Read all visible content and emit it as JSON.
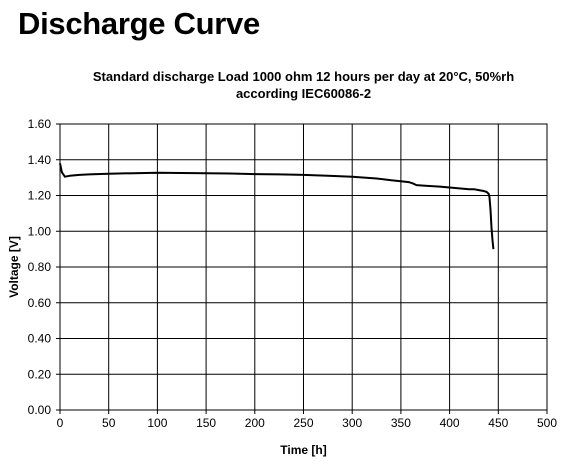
{
  "page": {
    "title": "Discharge Curve"
  },
  "chart_data": {
    "type": "line",
    "title_lines": [
      "Standard discharge Load 1000 ohm 12 hours per day at 20°C, 50%rh",
      "according IEC60086-2"
    ],
    "xlabel": "Time [h]",
    "ylabel": "Voltage [V]",
    "xlim": [
      0,
      500
    ],
    "ylim": [
      0,
      1.6
    ],
    "xticks": [
      0,
      50,
      100,
      150,
      200,
      250,
      300,
      350,
      400,
      450,
      500
    ],
    "yticks": [
      0.0,
      0.2,
      0.4,
      0.6,
      0.8,
      1.0,
      1.2,
      1.4,
      1.6
    ],
    "ytick_labels": [
      "0.00",
      "0.20",
      "0.40",
      "0.60",
      "0.80",
      "1.00",
      "1.20",
      "1.40",
      "1.60"
    ],
    "grid": true,
    "series": [
      {
        "x": [
          0,
          2,
          5,
          10,
          20,
          30,
          50,
          75,
          100,
          125,
          150,
          175,
          200,
          225,
          250,
          275,
          300,
          325,
          340,
          350,
          358,
          362,
          366,
          375,
          390,
          400,
          410,
          420,
          425,
          430,
          435,
          438,
          440,
          441,
          442,
          443,
          444,
          445
        ],
        "y": [
          1.38,
          1.33,
          1.305,
          1.31,
          1.315,
          1.318,
          1.322,
          1.325,
          1.327,
          1.326,
          1.325,
          1.323,
          1.32,
          1.318,
          1.315,
          1.31,
          1.305,
          1.295,
          1.285,
          1.28,
          1.275,
          1.268,
          1.258,
          1.255,
          1.25,
          1.245,
          1.24,
          1.235,
          1.235,
          1.23,
          1.225,
          1.22,
          1.21,
          1.19,
          1.12,
          1.02,
          0.95,
          0.9
        ]
      }
    ]
  }
}
